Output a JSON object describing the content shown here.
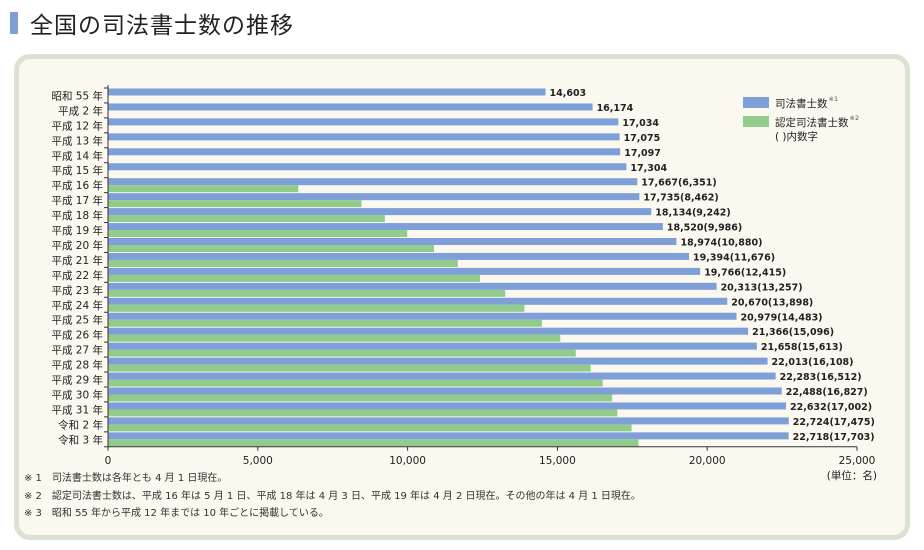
{
  "page": {
    "title": "全国の司法書士数の推移"
  },
  "chart_data": {
    "type": "bar",
    "orientation": "horizontal",
    "categories": [
      "昭和 55 年",
      "平成  2 年",
      "平成 12 年",
      "平成 13 年",
      "平成 14 年",
      "平成 15 年",
      "平成 16 年",
      "平成 17 年",
      "平成 18 年",
      "平成 19 年",
      "平成 20 年",
      "平成 21 年",
      "平成 22 年",
      "平成 23 年",
      "平成 24 年",
      "平成 25 年",
      "平成 26 年",
      "平成 27 年",
      "平成 28 年",
      "平成 29 年",
      "平成 30 年",
      "平成 31 年",
      "令和  2 年",
      "令和  3 年"
    ],
    "series": [
      {
        "name": "司法書士数",
        "name_note": "※1",
        "color": "#7f9fd8",
        "values": [
          14603,
          16174,
          17034,
          17075,
          17097,
          17304,
          17667,
          17735,
          18134,
          18520,
          18974,
          19394,
          19766,
          20313,
          20670,
          20979,
          21366,
          21658,
          22013,
          22283,
          22488,
          22632,
          22724,
          22718
        ]
      },
      {
        "name": "認定司法書士数",
        "name_note": "※2",
        "color": "#92cc8a",
        "values": [
          null,
          null,
          null,
          null,
          null,
          null,
          6351,
          8462,
          9242,
          9986,
          10880,
          11676,
          12415,
          13257,
          13898,
          14483,
          15096,
          15613,
          16108,
          16512,
          16827,
          17002,
          17475,
          17703
        ]
      }
    ],
    "data_labels": [
      "14,603",
      "16,174",
      "17,034",
      "17,075",
      "17,097",
      "17,304",
      "17,667(6,351)",
      "17,735(8,462)",
      "18,134(9,242)",
      "18,520(9,986)",
      "18,974(10,880)",
      "19,394(11,676)",
      "19,766(12,415)",
      "20,313(13,257)",
      "20,670(13,898)",
      "20,979(14,483)",
      "21,366(15,096)",
      "21,658(15,613)",
      "22,013(16,108)",
      "22,283(16,512)",
      "22,488(16,827)",
      "22,632(17,002)",
      "22,724(17,475)",
      "22,718(17,703)"
    ],
    "xlim": [
      0,
      25000
    ],
    "xticks": [
      0,
      5000,
      10000,
      15000,
      20000,
      25000
    ],
    "xtick_labels": [
      "0",
      "5,000",
      "10,000",
      "15,000",
      "20,000",
      "25,000"
    ],
    "unit_label": "(単位：名)",
    "legend_extra": "(  )内数字",
    "legend_position": "top-right",
    "grid": false
  },
  "notes": [
    "※ 1　司法書士数は各年とも 4 月 1 日現在。",
    "※ 2　認定司法書士数は、平成 16 年は 5 月 1 日、平成 18 年は 4 月 3 日、平成 19 年は 4 月 2 日現在。その他の年は 4 月 1 日現在。",
    "※ 3　昭和 55 年から平成 12 年までは 10 年ごとに掲載している。"
  ]
}
